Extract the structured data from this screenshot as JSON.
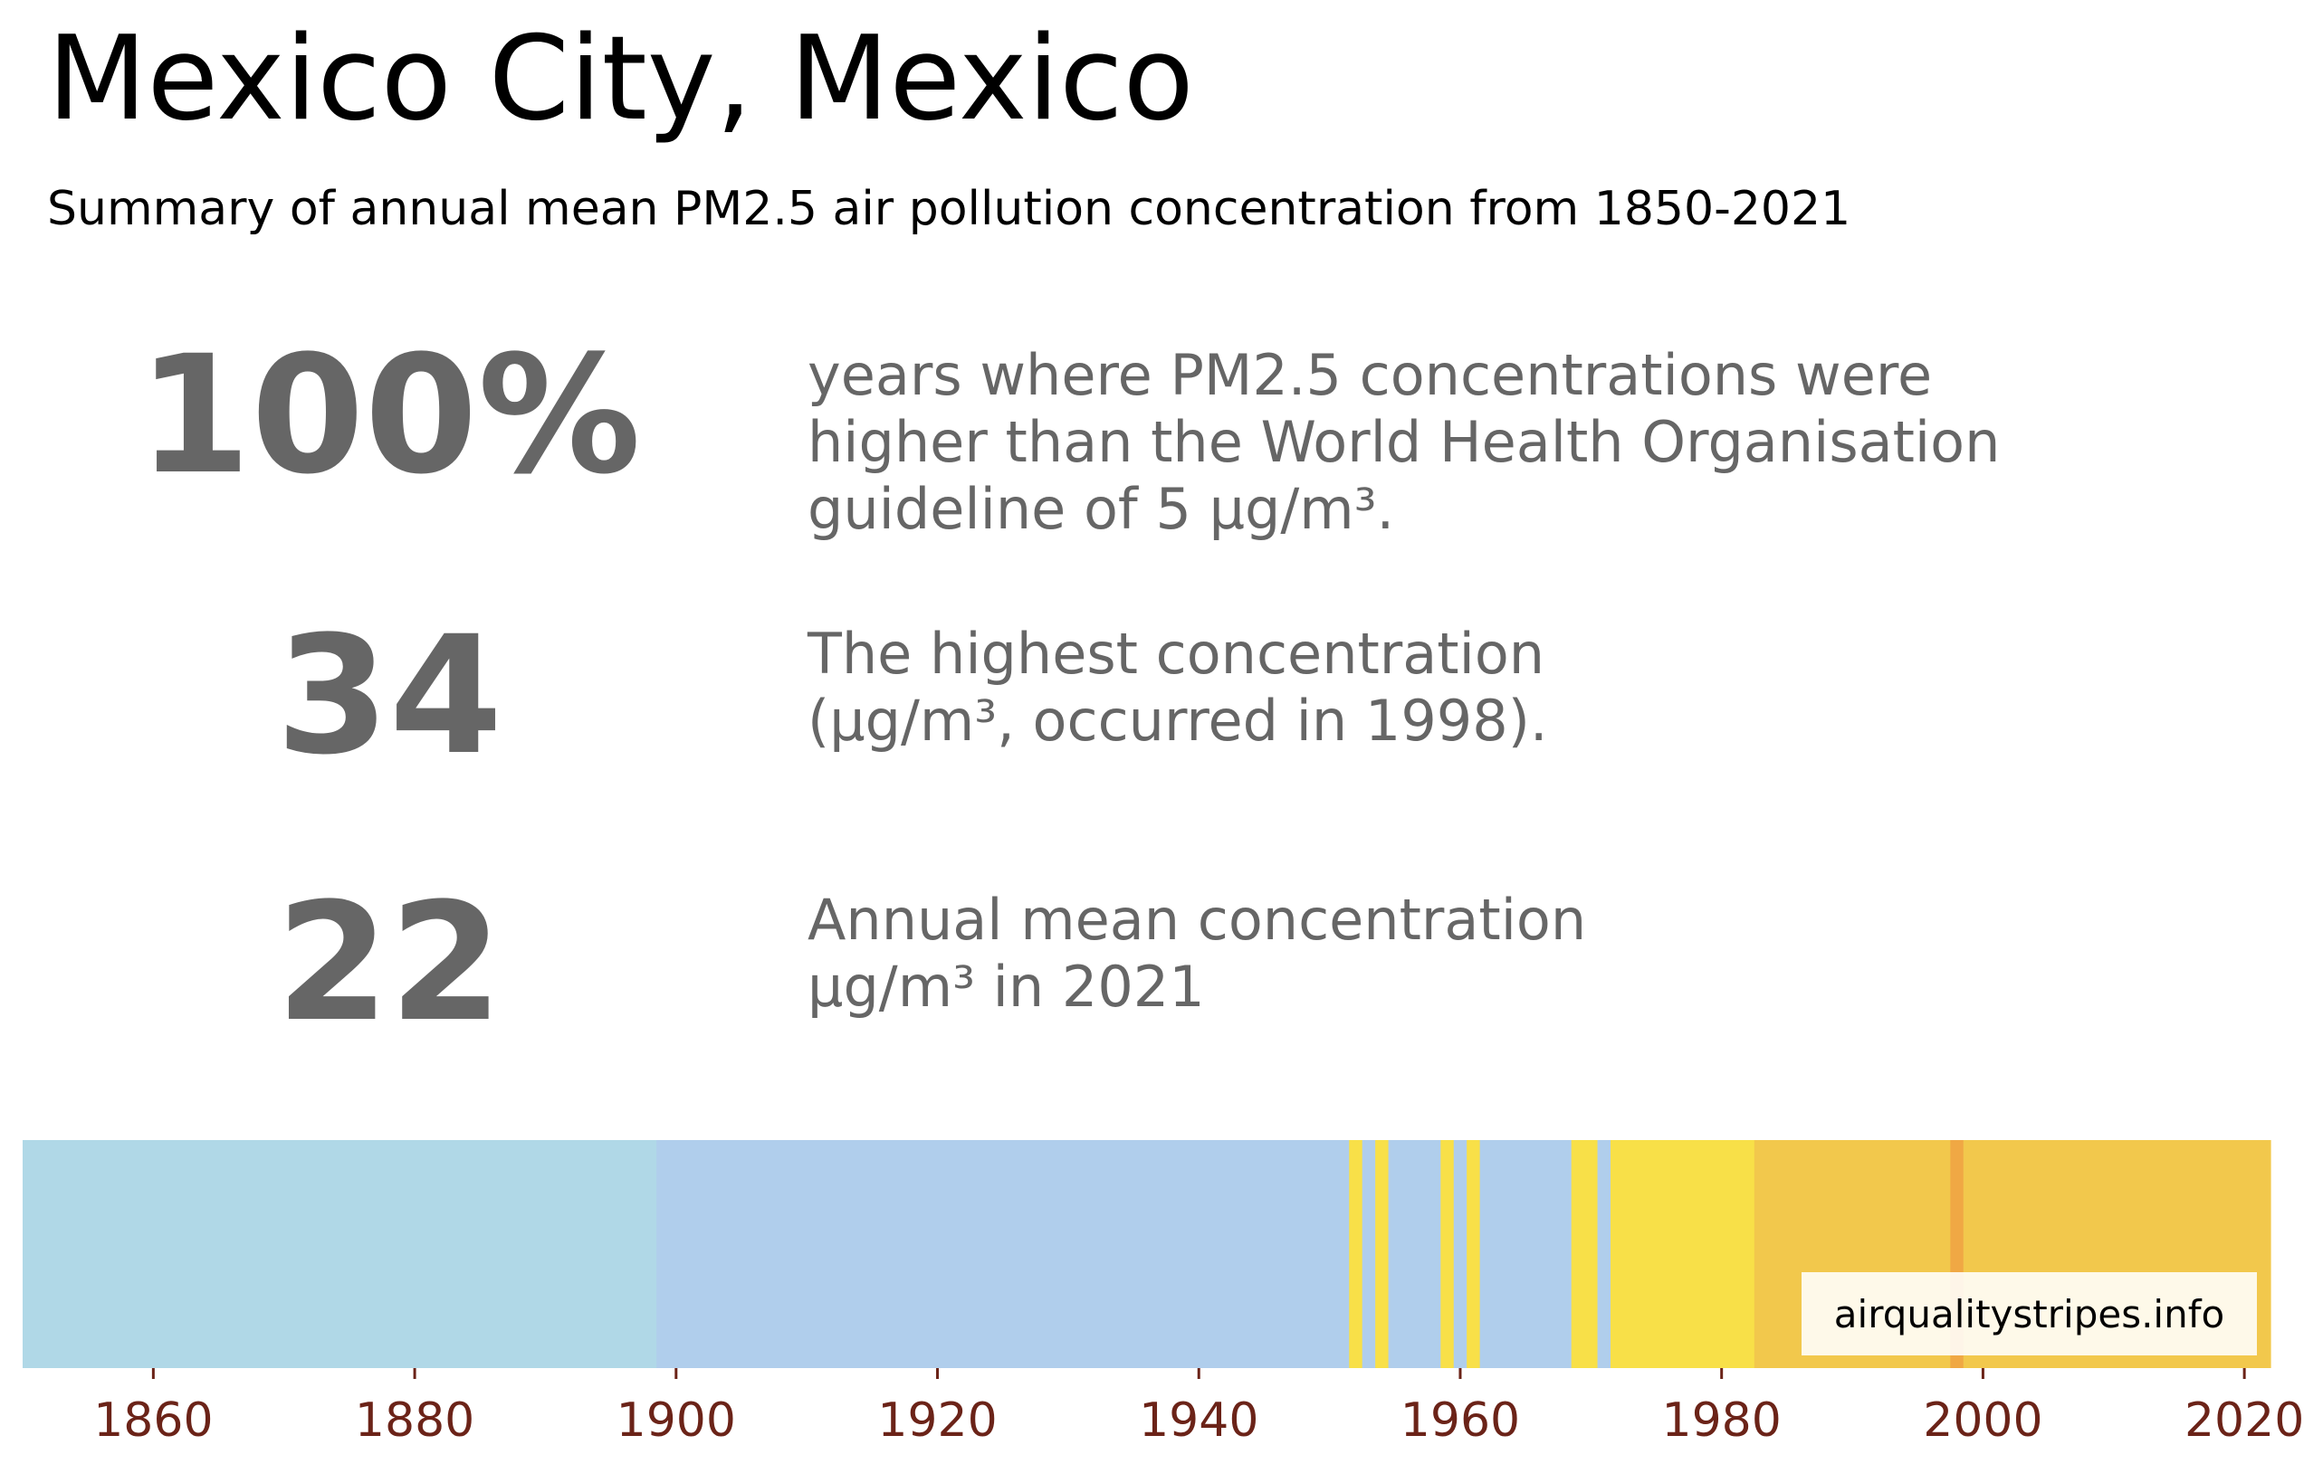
{
  "header": {
    "title": "Mexico City, Mexico",
    "subtitle": "Summary of annual mean PM2.5 air pollution concentration from 1850-2021"
  },
  "stats": [
    {
      "value": "100%",
      "description": "years where PM2.5 concentrations were\nhigher than the World Health Organisation\nguideline of 5 µg/m³."
    },
    {
      "value": "34",
      "description": "The highest concentration\n(µg/m³, occurred in 1998)."
    },
    {
      "value": "22",
      "description": "Annual mean concentration\nµg/m³ in 2021"
    }
  ],
  "credit": "airqualitystripes.info",
  "colors": {
    "text_gray": "#666666",
    "tick_color": "#6b2318"
  },
  "chart_data": {
    "type": "heatmap",
    "description_type": "warming-stripes",
    "x_range": [
      1850,
      2022
    ],
    "xticks": [
      1860,
      1880,
      1900,
      1920,
      1940,
      1960,
      1980,
      2000,
      2020
    ],
    "stripes": [
      {
        "start": 1850,
        "end": 1898.5,
        "color": "#b0d8e7"
      },
      {
        "start": 1898.5,
        "end": 1951.5,
        "color": "#b0ceec"
      },
      {
        "start": 1951.5,
        "end": 1952.5,
        "color": "#f8e048"
      },
      {
        "start": 1952.5,
        "end": 1953.5,
        "color": "#b0ceec"
      },
      {
        "start": 1953.5,
        "end": 1954.5,
        "color": "#f8e048"
      },
      {
        "start": 1954.5,
        "end": 1958.5,
        "color": "#b0ceec"
      },
      {
        "start": 1958.5,
        "end": 1959.5,
        "color": "#f8e048"
      },
      {
        "start": 1959.5,
        "end": 1960.5,
        "color": "#b0ceec"
      },
      {
        "start": 1960.5,
        "end": 1961.5,
        "color": "#f8e048"
      },
      {
        "start": 1961.5,
        "end": 1968.5,
        "color": "#b0ceec"
      },
      {
        "start": 1968.5,
        "end": 1970.5,
        "color": "#f8e048"
      },
      {
        "start": 1970.5,
        "end": 1971.5,
        "color": "#b0ceec"
      },
      {
        "start": 1971.5,
        "end": 1982.5,
        "color": "#f8e048"
      },
      {
        "start": 1982.5,
        "end": 1997.5,
        "color": "#f2c84c"
      },
      {
        "start": 1997.5,
        "end": 1998.5,
        "color": "#f0a844"
      },
      {
        "start": 1998.5,
        "end": 2022,
        "color": "#f2c84c"
      }
    ]
  }
}
